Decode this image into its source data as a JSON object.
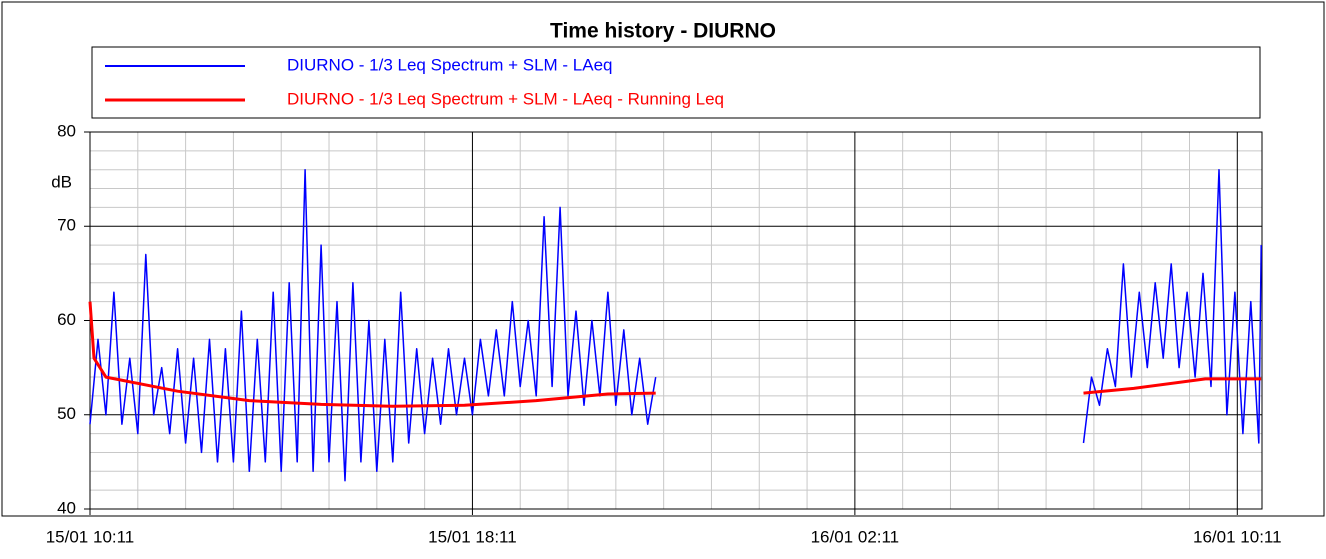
{
  "chart_data": {
    "type": "line",
    "title": "Time history - DIURNO",
    "y_label": "dB",
    "xlim": [
      "15/01 10:11",
      "16/01 10:42"
    ],
    "xticks": [
      "15/01 10:11",
      "15/01 18:11",
      "16/01 02:11",
      "16/01 10:11"
    ],
    "minor_xticks": [
      "15/01 11:11",
      "15/01 12:11",
      "15/01 13:11",
      "15/01 14:11",
      "15/01 15:11",
      "15/01 16:11",
      "15/01 17:11",
      "15/01 19:11",
      "15/01 20:11",
      "15/01 21:11",
      "15/01 22:11",
      "15/01 23:11",
      "16/01 00:11",
      "16/01 01:11",
      "16/01 03:11",
      "16/01 04:11",
      "16/01 05:11",
      "16/01 06:11",
      "16/01 07:11",
      "16/01 08:11",
      "16/01 09:11"
    ],
    "ylim": [
      40,
      80
    ],
    "yticks": [
      40,
      50,
      60,
      70,
      80
    ],
    "minor_yticks": [
      42,
      44,
      46,
      48,
      52,
      54,
      56,
      58,
      62,
      64,
      66,
      68,
      72,
      74,
      76,
      78
    ],
    "grid": true,
    "series": [
      {
        "name": "DIURNO - 1/3 Leq Spectrum + SLM - LAeq",
        "color": "#0000ff",
        "x": [
          "15/01 10:11",
          "15/01 10:21",
          "15/01 10:31",
          "15/01 10:41",
          "15/01 10:51",
          "15/01 11:01",
          "15/01 11:11",
          "15/01 11:21",
          "15/01 11:31",
          "15/01 11:41",
          "15/01 11:51",
          "15/01 12:01",
          "15/01 12:11",
          "15/01 12:21",
          "15/01 12:31",
          "15/01 12:41",
          "15/01 12:51",
          "15/01 13:01",
          "15/01 13:11",
          "15/01 13:21",
          "15/01 13:31",
          "15/01 13:41",
          "15/01 13:51",
          "15/01 14:01",
          "15/01 14:11",
          "15/01 14:21",
          "15/01 14:31",
          "15/01 14:41",
          "15/01 14:51",
          "15/01 15:01",
          "15/01 15:11",
          "15/01 15:21",
          "15/01 15:31",
          "15/01 15:41",
          "15/01 15:51",
          "15/01 16:01",
          "15/01 16:11",
          "15/01 16:21",
          "15/01 16:31",
          "15/01 16:41",
          "15/01 16:51",
          "15/01 17:01",
          "15/01 17:11",
          "15/01 17:21",
          "15/01 17:31",
          "15/01 17:41",
          "15/01 17:51",
          "15/01 18:01",
          "15/01 18:11",
          "15/01 18:21",
          "15/01 18:31",
          "15/01 18:41",
          "15/01 18:51",
          "15/01 19:01",
          "15/01 19:11",
          "15/01 19:21",
          "15/01 19:31",
          "15/01 19:41",
          "15/01 19:51",
          "15/01 20:01",
          "15/01 20:11",
          "15/01 20:21",
          "15/01 20:31",
          "15/01 20:41",
          "15/01 20:51",
          "15/01 21:01",
          "15/01 21:11",
          "15/01 21:21",
          "15/01 21:31",
          "15/01 21:41",
          "15/01 21:51",
          "15/01 22:01",
          "16/01 02:11",
          "16/01 06:58",
          "16/01 07:08",
          "16/01 07:18",
          "16/01 07:28",
          "16/01 07:38",
          "16/01 07:48",
          "16/01 07:58",
          "16/01 08:08",
          "16/01 08:18",
          "16/01 08:28",
          "16/01 08:38",
          "16/01 08:48",
          "16/01 08:58",
          "16/01 09:08",
          "16/01 09:18",
          "16/01 09:28",
          "16/01 09:38",
          "16/01 09:48",
          "16/01 09:58",
          "16/01 10:08",
          "16/01 10:18",
          "16/01 10:28",
          "16/01 10:38",
          "16/01 10:41"
        ],
        "values": [
          49,
          58,
          50,
          63,
          49,
          56,
          48,
          67,
          50,
          55,
          48,
          57,
          47,
          56,
          46,
          58,
          45,
          57,
          45,
          61,
          44,
          58,
          45,
          63,
          44,
          64,
          45,
          76,
          44,
          68,
          45,
          62,
          43,
          64,
          45,
          60,
          44,
          58,
          45,
          63,
          47,
          57,
          48,
          56,
          49,
          57,
          50,
          56,
          50,
          58,
          52,
          59,
          52,
          62,
          53,
          60,
          52,
          71,
          53,
          72,
          52,
          61,
          51,
          60,
          52,
          63,
          51,
          59,
          50,
          56,
          49,
          54,
          null,
          47,
          54,
          51,
          57,
          53,
          66,
          54,
          63,
          55,
          64,
          56,
          66,
          55,
          63,
          54,
          65,
          53,
          76,
          50,
          63,
          48,
          62,
          47,
          68
        ]
      },
      {
        "name": "DIURNO - 1/3 Leq Spectrum + SLM - LAeq - Running Leq",
        "color": "#ff0000",
        "x": [
          "15/01 10:11",
          "15/01 10:16",
          "15/01 10:31",
          "15/01 11:01",
          "15/01 12:01",
          "15/01 13:31",
          "15/01 15:01",
          "15/01 16:31",
          "15/01 18:01",
          "15/01 19:31",
          "15/01 21:01",
          "15/01 22:01",
          "16/01 02:11",
          "16/01 06:58",
          "16/01 08:01",
          "16/01 09:31",
          "16/01 10:41"
        ],
        "values": [
          62,
          56,
          54,
          53.5,
          52.5,
          51.5,
          51.1,
          50.9,
          51,
          51.5,
          52.2,
          52.3,
          null,
          52.3,
          52.8,
          53.8,
          53.8
        ]
      }
    ]
  }
}
